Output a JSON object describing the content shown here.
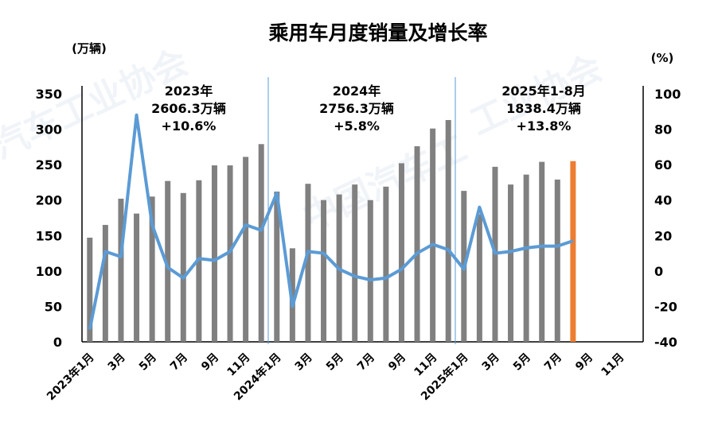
{
  "chart_data": {
    "type": "bar+line",
    "title": "乘用车月度销量及增长率",
    "ylabel_left": "(万辆)",
    "ylabel_right": "(%)",
    "ylim_left": [
      0,
      350
    ],
    "yticks_left": [
      "0",
      "50",
      "100",
      "150",
      "200",
      "250",
      "300",
      "350"
    ],
    "ylim_right": [
      -40,
      100
    ],
    "yticks_right": [
      "-40",
      "-20",
      "0",
      "20",
      "40",
      "60",
      "80",
      "100"
    ],
    "xtick_labels": [
      "2023年1月",
      "3月",
      "5月",
      "7月",
      "9月",
      "11月",
      "2024年1月",
      "3月",
      "5月",
      "7月",
      "9月",
      "11月",
      "2025年1月",
      "3月",
      "5月",
      "7月",
      "9月",
      "11月"
    ],
    "grid": false,
    "colors": {
      "bar": "#808080",
      "highlight_bar": "#ED7D31",
      "line": "#5B9BD5"
    },
    "months_total": 36,
    "sales": [
      147,
      165,
      202,
      181,
      205,
      227,
      210,
      228,
      249,
      249,
      261,
      279,
      212,
      132,
      223,
      200,
      208,
      222,
      200,
      219,
      252,
      276,
      301,
      313,
      213,
      180,
      247,
      222,
      236,
      254,
      229,
      255
    ],
    "growth": [
      -33,
      11,
      8,
      88,
      26,
      2,
      -4,
      7,
      6,
      11,
      26,
      23,
      44,
      -20,
      11,
      10,
      1,
      -3,
      -5,
      -4,
      1,
      10,
      15,
      12,
      1,
      36,
      10,
      11,
      13,
      14,
      14,
      17
    ],
    "annotations": [
      {
        "lines": [
          "2023年",
          "2606.3万辆",
          "+10.6%"
        ]
      },
      {
        "lines": [
          "2024年",
          "2756.3万辆",
          "+5.8%"
        ]
      },
      {
        "lines": [
          "2025年1-8月",
          "1838.4万辆",
          "+13.8%"
        ]
      }
    ]
  }
}
